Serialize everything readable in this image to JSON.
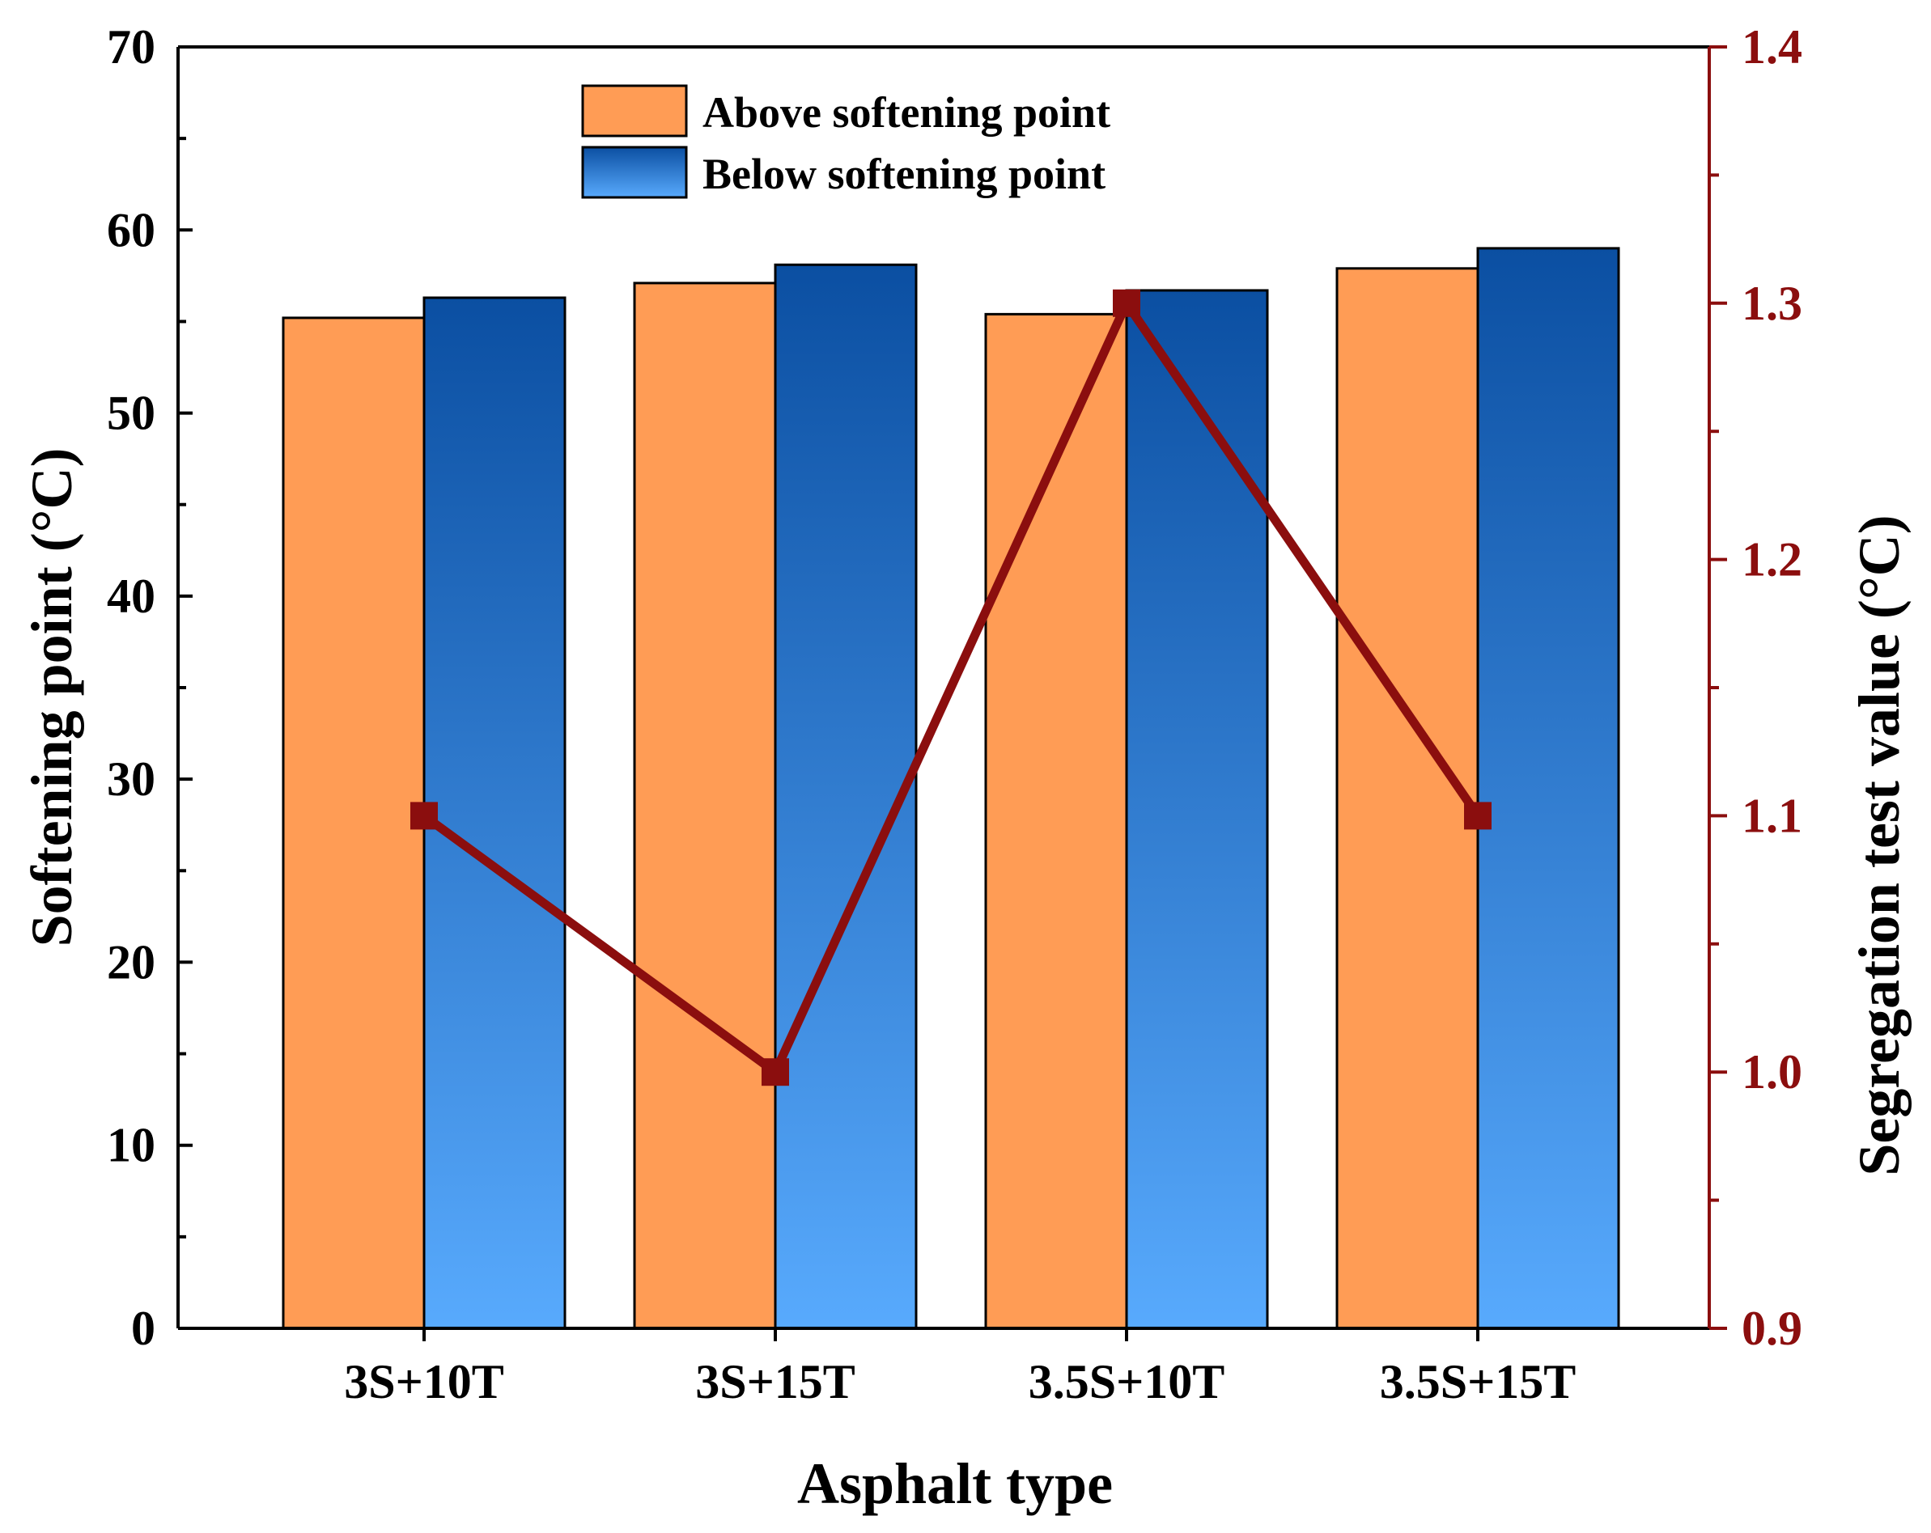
{
  "chart_data": {
    "type": "bar",
    "xlabel": "Asphalt type",
    "ylabel": "Softening point (°C)",
    "y2label": "Segregation test value (°C)",
    "categories": [
      "3S+10T",
      "3S+15T",
      "3.5S+10T",
      "3.5S+15T"
    ],
    "ylim": [
      0,
      70
    ],
    "yticks": [
      0,
      10,
      20,
      30,
      40,
      50,
      60,
      70
    ],
    "y2lim": [
      0.9,
      1.4
    ],
    "y2ticks": [
      "0.9",
      "1.0",
      "1.1",
      "1.2",
      "1.3",
      "1.4"
    ],
    "series": [
      {
        "name": "Above softening point",
        "type": "bar",
        "axis": "left",
        "color": "#FF9C55",
        "values": [
          55.2,
          57.1,
          55.4,
          57.9
        ]
      },
      {
        "name": "Below softening point",
        "type": "bar",
        "axis": "left",
        "color_top": "#0B4FA2",
        "color_bottom": "#58AAFD",
        "values": [
          56.3,
          58.1,
          56.7,
          59.0
        ]
      },
      {
        "name": "Segregation test value",
        "type": "line",
        "axis": "right",
        "color": "#8B0E0E",
        "values": [
          1.1,
          1.0,
          1.3,
          1.1
        ]
      }
    ],
    "legend_position": "top-center"
  },
  "colors": {
    "axis": "#000000",
    "right_axis": "#8B0E0E"
  }
}
